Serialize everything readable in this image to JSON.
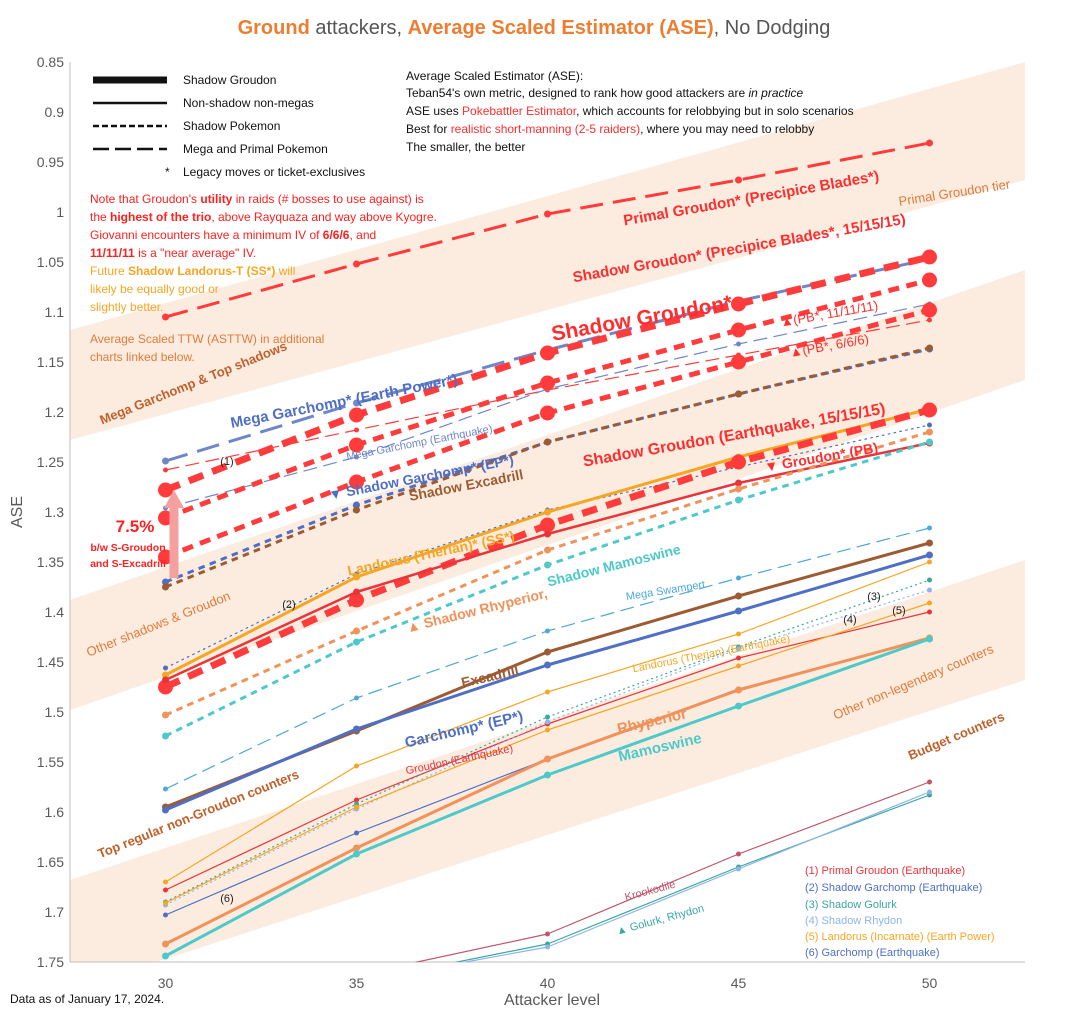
{
  "title": {
    "part1": "Ground",
    "part2": " attackers, ",
    "part3": "Average Scaled Estimator (ASE)",
    "part4": ", No Dodging"
  },
  "footer_note": "Data as of January 17, 2024.",
  "colors": {
    "orange": "#ed7d31",
    "red": "#ff3b3b",
    "blue": "#4f6fc4",
    "brown": "#9c5b33",
    "teal": "#4ec9c9",
    "amber": "#f5a623",
    "band": "#fbe5d6"
  },
  "legend": {
    "items": [
      {
        "label": "Shadow Groudon",
        "style": "thick"
      },
      {
        "label": "Non-shadow non-megas",
        "style": "solid"
      },
      {
        "label": "Shadow Pokemon",
        "style": "dash"
      },
      {
        "label": "Mega and Primal Pokemon",
        "style": "longdash"
      }
    ],
    "note": "Legacy moves or ticket-exclusives",
    "note_marker": "*"
  },
  "ase_info": {
    "line1": "Average Scaled Estimator (ASE):",
    "line2a": "Teban54's own metric, designed to rank how good attackers are ",
    "line2b": "in practice",
    "line3a": "ASE uses ",
    "line3b": "Pokebattler Estimator",
    "line3c": ", which accounts for relobbying but in solo scenarios",
    "line4a": "Best for ",
    "line4b": "realistic short-manning (2-5 raiders)",
    "line4c": ", where you may need to relobby",
    "line5": "The smaller, the better"
  },
  "note_block": {
    "l1a": "Note that Groudon's ",
    "l1b": "utility",
    "l1c": " in raids (# bosses to use against) is",
    "l2a": "the ",
    "l2b": "highest of the trio",
    "l2c": ", above Rayquaza and way above Kyogre.",
    "l3": "Giovanni encounters have a minimum IV of ",
    "l3b": "6/6/6",
    "l3c": ", and",
    "l4a": "11/11/11",
    "l4b": " is a \"near average\" IV.",
    "l5a": "Future ",
    "l5b": "Shadow Landorus-T (SS*)",
    "l5c": " will",
    "l6": "likely be equally good or",
    "l7": "slightly better.",
    "l8": "Average Scaled TTW (ASTTW) in additional",
    "l9": "charts linked below."
  },
  "gap_annotation": {
    "value": "7.5%",
    "l1": "b/w S-Groudon",
    "l2": "and S-Excadrill"
  },
  "tier_labels": [
    "Primal Groudon tier",
    "Mega Garchomp & Top shadows",
    "Other shadows & Groudon",
    "Top regular non-Groudon counters",
    "Other non-legendary counters",
    "Budget counters"
  ],
  "numbered_notes": [
    {
      "label": "(1) Primal Groudon (Earthquake)",
      "color": "#e8343b"
    },
    {
      "label": "(2) Shadow Garchomp (Earthquake)",
      "color": "#4f6fc4"
    },
    {
      "label": "(3) Shadow Golurk",
      "color": "#3aa8a0"
    },
    {
      "label": "(4) Shadow Rhydon",
      "color": "#8fb4e8"
    },
    {
      "label": "(5) Landorus (Incarnate) (Earth Power)",
      "color": "#f5a623"
    },
    {
      "label": "(6) Garchomp (Earthquake)",
      "color": "#4f6fc4"
    }
  ],
  "chart_data": {
    "type": "line",
    "xlabel": "Attacker level",
    "ylabel": "ASE",
    "y_axis_reversed": true,
    "ylim": [
      0.85,
      1.75
    ],
    "xlim": [
      27.5,
      52.5
    ],
    "x": [
      30,
      35,
      40,
      45,
      50
    ],
    "x_ticks": [
      "30",
      "35",
      "40",
      "45",
      "50"
    ],
    "y_ticks": [
      "0.85",
      "0.9",
      "0.95",
      "1",
      "1.05",
      "1.1",
      "1.15",
      "1.2",
      "1.25",
      "1.3",
      "1.35",
      "1.4",
      "1.45",
      "1.5",
      "1.55",
      "1.6",
      "1.65",
      "1.7",
      "1.75"
    ],
    "grid": false,
    "series": [
      {
        "name": "Primal Groudon* (Precipice Blades*)",
        "values": [
          1.105,
          1.052,
          1.002,
          0.968,
          0.931
        ],
        "color": "#ff3b3b",
        "style": "longdash",
        "width": 3
      },
      {
        "name": "(1)",
        "values": [
          1.258,
          1.218,
          1.178,
          1.143,
          1.108
        ],
        "color": "#ff3b3b",
        "style": "longdash",
        "width": 1.2
      },
      {
        "name": "Mega Garchomp* (Earth Power*)",
        "values": [
          1.249,
          1.191,
          1.138,
          1.089,
          1.047
        ],
        "color": "#6f86c9",
        "style": "longdash",
        "width": 3
      },
      {
        "name": "Mega Garchomp (Earthquake)",
        "values": [
          1.296,
          1.245,
          1.177,
          1.132,
          1.092
        ],
        "color": "#6f86c9",
        "style": "longdash",
        "width": 1.2
      },
      {
        "name": "Shadow Groudon* (Precipice Blades*, 15/15/15)",
        "values": [
          1.278,
          1.203,
          1.141,
          1.092,
          1.045
        ],
        "color": "#ff3b3b",
        "style": "dash",
        "width": 7
      },
      {
        "name": "PB*, 11/11/11",
        "values": [
          1.306,
          1.233,
          1.171,
          1.118,
          1.068
        ],
        "color": "#ff3b3b",
        "style": "dash",
        "width": 5
      },
      {
        "name": "PB*, 6/6/6",
        "values": [
          1.345,
          1.27,
          1.201,
          1.15,
          1.098
        ],
        "color": "#ff3b3b",
        "style": "dash",
        "width": 5
      },
      {
        "name": "Shadow Garchomp* (EP*)",
        "values": [
          1.37,
          1.293,
          1.23,
          1.182,
          1.137
        ],
        "color": "#4f6fc4",
        "style": "dash",
        "width": 3
      },
      {
        "name": "Shadow Excadrill",
        "values": [
          1.375,
          1.298,
          1.23,
          1.182,
          1.136
        ],
        "color": "#9c5b33",
        "style": "dash",
        "width": 3
      },
      {
        "name": "(2)",
        "values": [
          1.456,
          1.362,
          1.298,
          1.255,
          1.213
        ],
        "color": "#4f6fc4",
        "style": "dash",
        "width": 1.2
      },
      {
        "name": "Landorus (Therian)* (SS*)",
        "values": [
          1.463,
          1.365,
          1.3,
          1.245,
          1.197
        ],
        "color": "#f5a623",
        "style": "solid",
        "width": 3
      },
      {
        "name": "Shadow Groudon (Earthquake, 15/15/15)",
        "values": [
          1.475,
          1.388,
          1.313,
          1.25,
          1.198
        ],
        "color": "#ff3b3b",
        "style": "dash",
        "width": 7
      },
      {
        "name": "Groudon* (PB)",
        "values": [
          1.468,
          1.38,
          1.322,
          1.271,
          1.231
        ],
        "color": "#e8343b",
        "style": "solid",
        "width": 2.5
      },
      {
        "name": "Shadow Rhyperior",
        "values": [
          1.503,
          1.419,
          1.338,
          1.277,
          1.22
        ],
        "color": "#f0925a",
        "style": "dash",
        "width": 3
      },
      {
        "name": "Shadow Mamoswine",
        "values": [
          1.524,
          1.43,
          1.353,
          1.288,
          1.23
        ],
        "color": "#4ec9c9",
        "style": "dash",
        "width": 3
      },
      {
        "name": "Mega Swampert",
        "values": [
          1.577,
          1.486,
          1.419,
          1.366,
          1.316
        ],
        "color": "#4ea8d8",
        "style": "longdash",
        "width": 1.2
      },
      {
        "name": "Excadrill",
        "values": [
          1.595,
          1.519,
          1.44,
          1.384,
          1.331
        ],
        "color": "#9c5b33",
        "style": "solid",
        "width": 3
      },
      {
        "name": "Garchomp* (EP*)",
        "values": [
          1.598,
          1.517,
          1.453,
          1.399,
          1.343
        ],
        "color": "#4f6fc4",
        "style": "solid",
        "width": 3
      },
      {
        "name": "Landorus (Therian) (Earthquake)",
        "values": [
          1.67,
          1.554,
          1.48,
          1.422,
          1.35
        ],
        "color": "#f5a623",
        "style": "solid",
        "width": 1.2
      },
      {
        "name": "Groudon (Earthquake)",
        "values": [
          1.678,
          1.588,
          1.512,
          1.446,
          1.4
        ],
        "color": "#e8343b",
        "style": "solid",
        "width": 1.2
      },
      {
        "name": "(3)",
        "values": [
          1.69,
          1.592,
          1.505,
          1.435,
          1.368
        ],
        "color": "#3aa8a0",
        "style": "dot",
        "width": 1.2
      },
      {
        "name": "(4)",
        "values": [
          1.693,
          1.597,
          1.51,
          1.437,
          1.378
        ],
        "color": "#8fb4e8",
        "style": "dot",
        "width": 1.2
      },
      {
        "name": "(5)",
        "values": [
          1.691,
          1.595,
          1.518,
          1.454,
          1.391
        ],
        "color": "#f5a623",
        "style": "solid",
        "width": 1.2
      },
      {
        "name": "(6)",
        "values": [
          1.703,
          1.621,
          1.547,
          1.477,
          1.426
        ],
        "color": "#4f6fc4",
        "style": "solid",
        "width": 1.2
      },
      {
        "name": "Rhyperior",
        "values": [
          1.732,
          1.636,
          1.547,
          1.478,
          1.426
        ],
        "color": "#f0925a",
        "style": "solid",
        "width": 3
      },
      {
        "name": "Mamoswine",
        "values": [
          1.744,
          1.642,
          1.563,
          1.494,
          1.427
        ],
        "color": "#4ec9c9",
        "style": "solid",
        "width": 3
      },
      {
        "name": "Krookodile",
        "values": [
          1.792,
          1.763,
          1.722,
          1.642,
          1.57
        ],
        "color": "#c0566a",
        "style": "solid",
        "width": 1.2
      },
      {
        "name": "Golurk",
        "values": [
          1.8,
          1.77,
          1.732,
          1.655,
          1.583
        ],
        "color": "#3aa8a0",
        "style": "solid",
        "width": 1.2
      },
      {
        "name": "Rhydon",
        "values": [
          1.8,
          1.77,
          1.735,
          1.657,
          1.58
        ],
        "color": "#8fb4e8",
        "style": "solid",
        "width": 1.2
      }
    ],
    "annotations": [
      {
        "text": "Primal Groudon* (Precipice Blades*)",
        "color": "#ff2e2e"
      },
      {
        "text": "Shadow Groudon* (Precipice Blades*, 15/15/15)",
        "color": "#ff2e2e"
      },
      {
        "text": "Shadow Groudon*",
        "color": "#ff2e2e"
      },
      {
        "text": "▲(PB*, 11/11/11)",
        "color": "#ff2e2e"
      },
      {
        "text": "▲(PB*, 6/6/6)",
        "color": "#ff2e2e"
      },
      {
        "text": "Mega Garchomp* (Earth Power*)",
        "color": "#4f6fc4"
      },
      {
        "text": "Mega Garchomp (Earthquake)",
        "color": "#6f86c9"
      },
      {
        "text": "▼ Shadow Garchomp* (EP*)",
        "color": "#4f6fc4"
      },
      {
        "text": "Shadow Excadrill",
        "color": "#9c5b33"
      },
      {
        "text": "Shadow Groudon (Earthquake, 15/15/15)",
        "color": "#ff2e2e"
      },
      {
        "text": "▼ Groudon* (PB)",
        "color": "#ff2e2e"
      },
      {
        "text": "Landorus (Therian)* (SS*)",
        "color": "#f5a623"
      },
      {
        "text": "▲ Shadow Rhyperior,",
        "color": "#f0925a"
      },
      {
        "text": "Shadow Mamoswine",
        "color": "#4ec9c9"
      },
      {
        "text": "Mega Swampert",
        "color": "#4ea8d8"
      },
      {
        "text": "Landorus (Therian) (Earthquake)",
        "color": "#f5a623"
      },
      {
        "text": "Excadrill",
        "color": "#9c5b33"
      },
      {
        "text": "Garchomp* (EP*)",
        "color": "#4f6fc4"
      },
      {
        "text": "Rhyperior",
        "color": "#f0925a"
      },
      {
        "text": "Mamoswine",
        "color": "#4ec9c9"
      },
      {
        "text": "Groudon (Earthquake)",
        "color": "#e8343b"
      },
      {
        "text": "Krookodile",
        "color": "#c0566a"
      },
      {
        "text": "▲ Golurk, Rhydon",
        "color": "#3aa8a0"
      },
      {
        "text": "(1)",
        "color": "#222222"
      },
      {
        "text": "(2)",
        "color": "#222222"
      },
      {
        "text": "(3)",
        "color": "#222222"
      },
      {
        "text": "(4)",
        "color": "#222222"
      },
      {
        "text": "(5)",
        "color": "#222222"
      },
      {
        "text": "(6)",
        "color": "#222222"
      }
    ]
  }
}
